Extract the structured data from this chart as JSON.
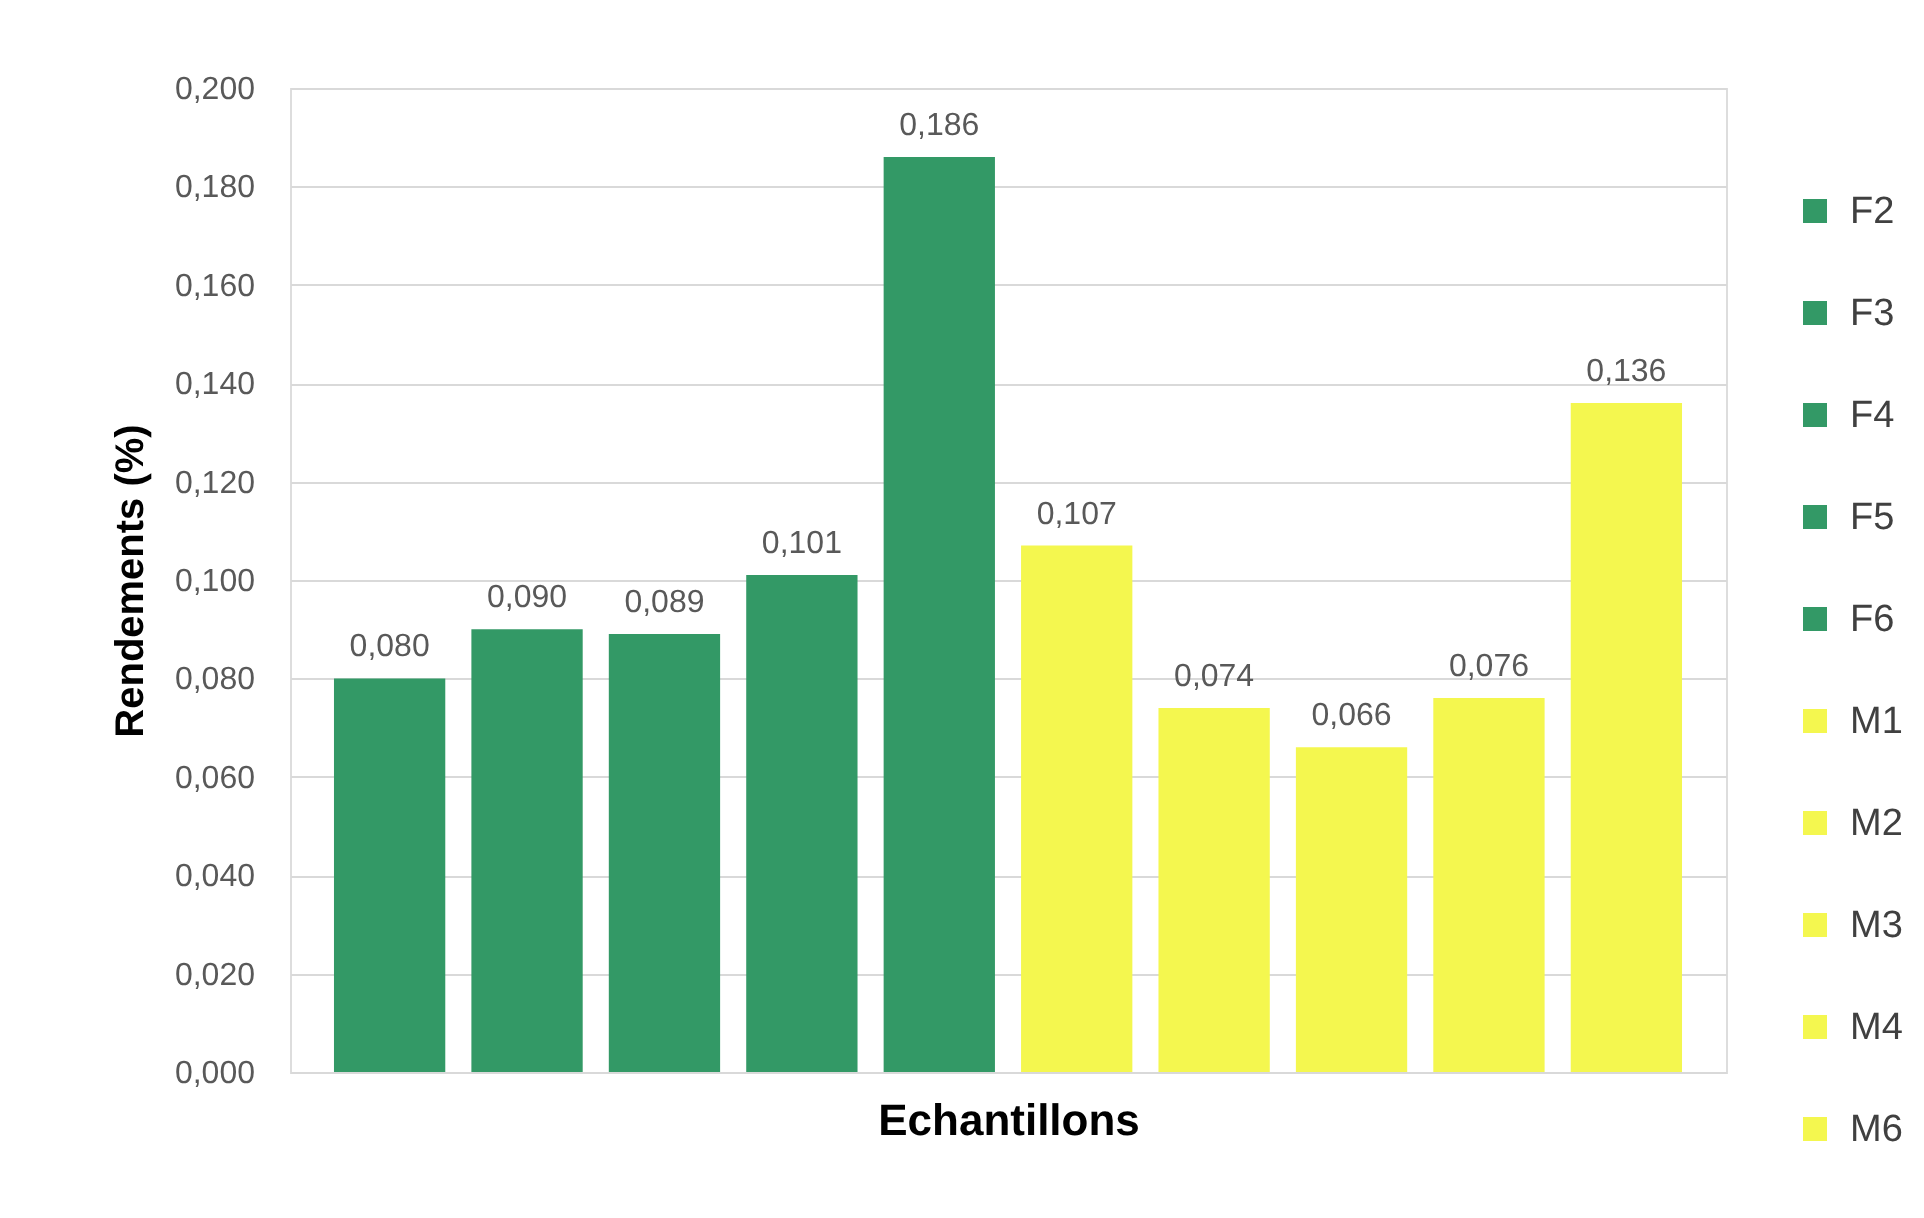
{
  "chart_data": {
    "type": "bar",
    "xlabel": "Echantillons",
    "ylabel": "Rendements (%)",
    "categories": [
      null
    ],
    "series": [
      {
        "name": "F2",
        "color": "#339966",
        "values": [
          0.08
        ],
        "value_labels": [
          "0,080"
        ]
      },
      {
        "name": "F3",
        "color": "#339966",
        "values": [
          0.09
        ],
        "value_labels": [
          "0,090"
        ]
      },
      {
        "name": "F4",
        "color": "#339966",
        "values": [
          0.089
        ],
        "value_labels": [
          "0,089"
        ]
      },
      {
        "name": "F5",
        "color": "#339966",
        "values": [
          0.101
        ],
        "value_labels": [
          "0,101"
        ]
      },
      {
        "name": "F6",
        "color": "#339966",
        "values": [
          0.186
        ],
        "value_labels": [
          "0,186"
        ]
      },
      {
        "name": "M1",
        "color": "#f4f74f",
        "values": [
          0.107
        ],
        "value_labels": [
          "0,107"
        ]
      },
      {
        "name": "M2",
        "color": "#f4f74f",
        "values": [
          0.074
        ],
        "value_labels": [
          "0,074"
        ]
      },
      {
        "name": "M3",
        "color": "#f4f74f",
        "values": [
          0.066
        ],
        "value_labels": [
          "0,066"
        ]
      },
      {
        "name": "M4",
        "color": "#f4f74f",
        "values": [
          0.076
        ],
        "value_labels": [
          "0,076"
        ]
      },
      {
        "name": "M6",
        "color": "#f4f74f",
        "values": [
          0.136
        ],
        "value_labels": [
          "0,136"
        ]
      }
    ],
    "ylim": [
      0,
      0.2
    ],
    "yticks": [
      {
        "value": 0,
        "label": "0,000"
      },
      {
        "value": 0.02,
        "label": "0,020"
      },
      {
        "value": 0.04,
        "label": "0,040"
      },
      {
        "value": 0.06,
        "label": "0,060"
      },
      {
        "value": 0.08,
        "label": "0,080"
      },
      {
        "value": 0.1,
        "label": "0,100"
      },
      {
        "value": 0.12,
        "label": "0,120"
      },
      {
        "value": 0.14,
        "label": "0,140"
      },
      {
        "value": 0.16,
        "label": "0,160"
      },
      {
        "value": 0.18,
        "label": "0,180"
      },
      {
        "value": 0.2,
        "label": "0,200"
      }
    ],
    "grid": "y",
    "legend": "right"
  }
}
